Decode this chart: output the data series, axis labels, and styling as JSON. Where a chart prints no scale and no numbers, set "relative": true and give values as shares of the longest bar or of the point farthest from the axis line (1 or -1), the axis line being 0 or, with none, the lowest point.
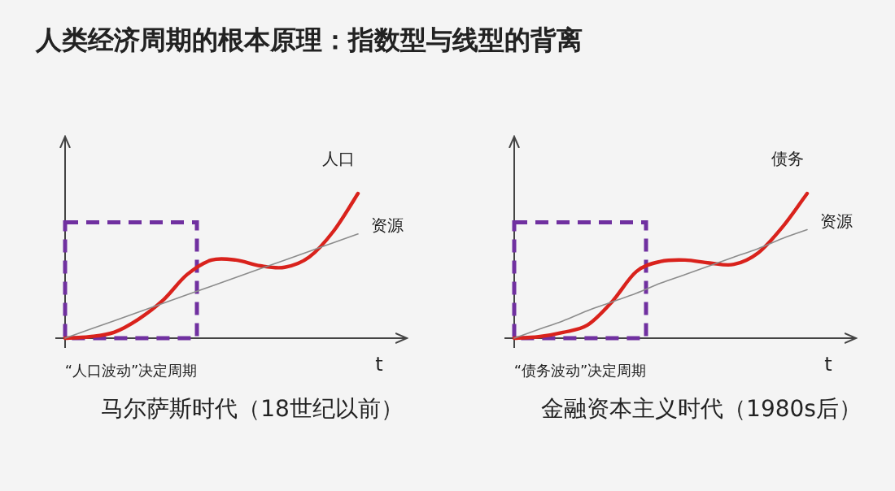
{
  "chart_data": [
    {
      "type": "line",
      "title": "人类经济周期的根本原理：指数型与线型的背离",
      "subtitle": "马尔萨斯时代（18世纪以前）",
      "xlabel": "t",
      "relative": true,
      "legend": false,
      "categories": [
        null,
        null,
        null,
        null,
        null,
        null,
        null,
        null,
        null,
        null,
        null,
        null,
        null
      ],
      "series": [
        {
          "name": "人口",
          "color": "#d9221c",
          "values": [
            0,
            0.01,
            0.04,
            0.13,
            0.26,
            0.44,
            0.54,
            0.54,
            0.5,
            0.49,
            0.56,
            0.74,
            1.0
          ]
        },
        {
          "name": "资源",
          "color": "#8c8c8c",
          "values": [
            0,
            0.06,
            0.12,
            0.18,
            0.24,
            0.3,
            0.36,
            0.42,
            0.48,
            0.54,
            0.6,
            0.66,
            0.72
          ]
        }
      ],
      "annotations": [
        "“人口波动”决定周期"
      ]
    },
    {
      "type": "line",
      "subtitle": "金融资本主义时代（1980s后）",
      "xlabel": "t",
      "relative": true,
      "legend": false,
      "categories": [
        null,
        null,
        null,
        null,
        null,
        null,
        null,
        null,
        null,
        null,
        null,
        null,
        null
      ],
      "series": [
        {
          "name": "债务",
          "color": "#d9221c",
          "values": [
            0,
            0.01,
            0.04,
            0.09,
            0.25,
            0.46,
            0.53,
            0.54,
            0.52,
            0.51,
            0.59,
            0.77,
            1.0
          ]
        },
        {
          "name": "资源",
          "color": "#8c8c8c",
          "values": [
            0,
            0.06,
            0.12,
            0.19,
            0.25,
            0.31,
            0.38,
            0.44,
            0.5,
            0.56,
            0.62,
            0.69,
            0.75
          ]
        }
      ],
      "annotations": [
        "“债务波动”决定周期"
      ]
    }
  ]
}
